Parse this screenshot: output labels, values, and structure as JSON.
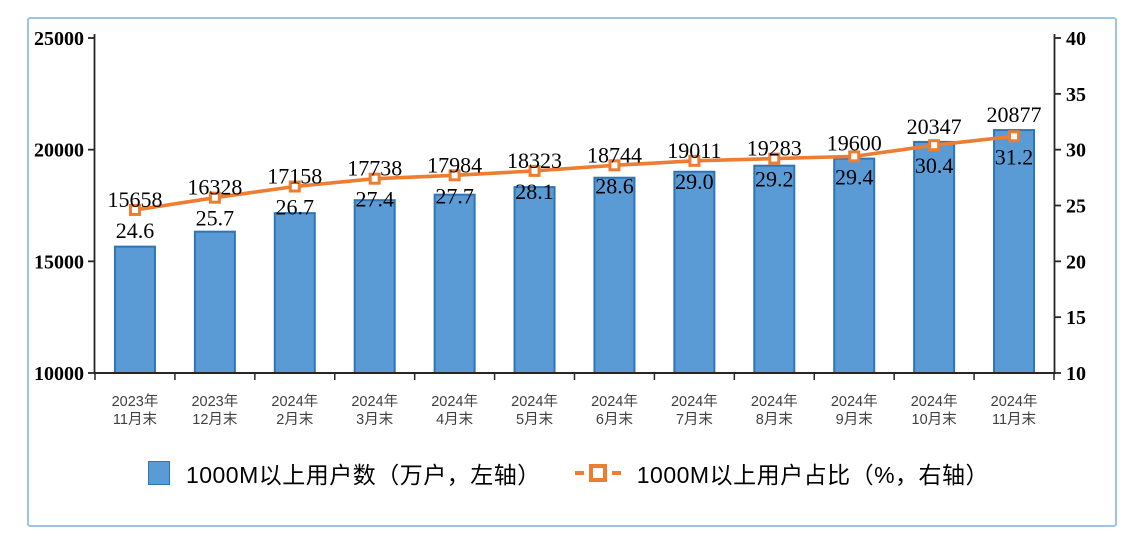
{
  "chart_data": {
    "type": "combo",
    "title": "",
    "grid": false,
    "legend_position": "bottom",
    "categories": [
      {
        "line1": "2023年",
        "line2": "11月末"
      },
      {
        "line1": "2023年",
        "line2": "12月末"
      },
      {
        "line1": "2024年",
        "line2": "2月末"
      },
      {
        "line1": "2024年",
        "line2": "3月末"
      },
      {
        "line1": "2024年",
        "line2": "4月末"
      },
      {
        "line1": "2024年",
        "line2": "5月末"
      },
      {
        "line1": "2024年",
        "line2": "6月末"
      },
      {
        "line1": "2024年",
        "line2": "7月末"
      },
      {
        "line1": "2024年",
        "line2": "8月末"
      },
      {
        "line1": "2024年",
        "line2": "9月末"
      },
      {
        "line1": "2024年",
        "line2": "10月末"
      },
      {
        "line1": "2024年",
        "line2": "11月末"
      }
    ],
    "series": [
      {
        "name": "1000M以上用户数（万户，左轴）",
        "type": "bar",
        "axis": "left",
        "values": [
          15658,
          16328,
          17158,
          17738,
          17984,
          18323,
          18744,
          19011,
          19283,
          19600,
          20347,
          20877
        ],
        "labels": [
          "15658",
          "16328",
          "17158",
          "17738",
          "17984",
          "18323",
          "18744",
          "19011",
          "19283",
          "19600",
          "20347",
          "20877"
        ]
      },
      {
        "name": "1000M以上用户占比（%，右轴）",
        "type": "line",
        "axis": "right",
        "values": [
          24.6,
          25.7,
          26.7,
          27.4,
          27.7,
          28.1,
          28.6,
          29.0,
          29.2,
          29.4,
          30.4,
          31.2
        ],
        "labels": [
          "24.6",
          "25.7",
          "26.7",
          "27.4",
          "27.7",
          "28.1",
          "28.6",
          "29.0",
          "29.2",
          "29.4",
          "30.4",
          "31.2"
        ]
      }
    ],
    "axes": {
      "left": {
        "min": 10000,
        "max": 25000,
        "tick_labels": [
          "25000",
          "20000",
          "15000",
          "10000"
        ],
        "tick_values": [
          25000,
          20000,
          15000,
          10000
        ]
      },
      "right": {
        "min": 10,
        "max": 40,
        "tick_labels": [
          "40",
          "35",
          "30",
          "25",
          "20",
          "15",
          "10"
        ],
        "tick_values": [
          40,
          35,
          30,
          25,
          20,
          15,
          10
        ]
      }
    }
  },
  "colors": {
    "bar_fill": "#5B9BD5",
    "bar_border": "#2E75B6",
    "line": "#ED7D31",
    "marker_fill": "#FFFFFF",
    "frame_border": "#9DC3E6",
    "axis": "#262626",
    "x_label": "#404040",
    "data_label": "#000000"
  }
}
